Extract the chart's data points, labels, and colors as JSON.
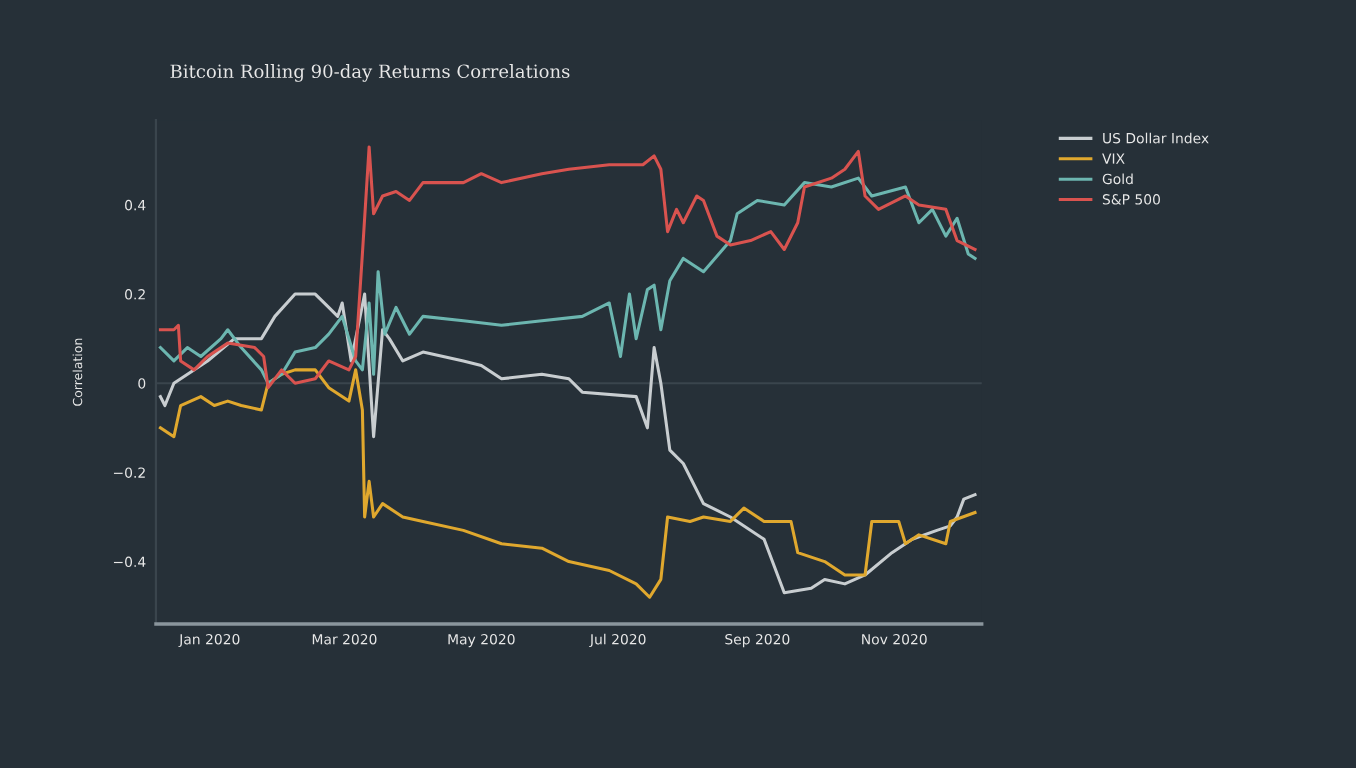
{
  "chart_data": {
    "type": "line",
    "title": "Bitcoin Rolling 90-day Returns Correlations",
    "ylabel": "Correlation",
    "xlim": [
      "2019-12-08",
      "2020-12-10"
    ],
    "ylim": [
      -0.54,
      0.59
    ],
    "xticks": [
      {
        "value": "2020-01-01",
        "label": "Jan 2020"
      },
      {
        "value": "2020-03-01",
        "label": "Mar 2020"
      },
      {
        "value": "2020-05-01",
        "label": "May 2020"
      },
      {
        "value": "2020-07-01",
        "label": "Jul 2020"
      },
      {
        "value": "2020-09-01",
        "label": "Sep 2020"
      },
      {
        "value": "2020-11-01",
        "label": "Nov 2020"
      }
    ],
    "yticks": [
      {
        "value": -0.4,
        "label": "−0.4"
      },
      {
        "value": -0.2,
        "label": "−0.2"
      },
      0,
      0.2,
      0.4
    ],
    "grid": false,
    "legend": "top right",
    "marker": "none",
    "line_style": "solid",
    "ref_lines": [
      {
        "axis": "y",
        "value": 0,
        "label": null,
        "color": "#3a454d"
      }
    ],
    "series": [
      {
        "name": "US Dollar Index",
        "color": "#c8cdd0",
        "x": [
          "2019-12-10",
          "2019-12-12",
          "2019-12-16",
          "2019-12-31",
          "2020-01-12",
          "2020-01-24",
          "2020-01-30",
          "2020-02-08",
          "2020-02-17",
          "2020-02-23",
          "2020-02-27",
          "2020-02-29",
          "2020-03-04",
          "2020-03-10",
          "2020-03-14",
          "2020-03-18",
          "2020-03-21",
          "2020-03-27",
          "2020-04-05",
          "2020-04-23",
          "2020-05-01",
          "2020-05-10",
          "2020-05-28",
          "2020-06-09",
          "2020-06-15",
          "2020-07-09",
          "2020-07-14",
          "2020-07-17",
          "2020-07-20",
          "2020-07-24",
          "2020-07-30",
          "2020-08-08",
          "2020-08-20",
          "2020-09-04",
          "2020-09-13",
          "2020-09-25",
          "2020-10-01",
          "2020-10-10",
          "2020-10-19",
          "2020-10-31",
          "2020-11-09",
          "2020-11-20",
          "2020-11-26",
          "2020-11-29",
          "2020-12-02",
          "2020-12-07"
        ],
        "values": [
          -0.03,
          -0.05,
          0.0,
          0.05,
          0.1,
          0.1,
          0.15,
          0.2,
          0.2,
          0.17,
          0.15,
          0.18,
          0.05,
          0.2,
          -0.12,
          0.12,
          0.1,
          0.05,
          0.07,
          0.05,
          0.04,
          0.01,
          0.02,
          0.01,
          -0.02,
          -0.03,
          -0.1,
          0.08,
          0.0,
          -0.15,
          -0.18,
          -0.27,
          -0.3,
          -0.35,
          -0.47,
          -0.46,
          -0.44,
          -0.45,
          -0.43,
          -0.38,
          -0.35,
          -0.33,
          -0.32,
          -0.3,
          -0.26,
          -0.25
        ]
      },
      {
        "name": "VIX",
        "color": "#e0a82e",
        "x": [
          "2019-12-10",
          "2019-12-16",
          "2019-12-19",
          "2019-12-28",
          "2020-01-03",
          "2020-01-09",
          "2020-01-15",
          "2020-01-24",
          "2020-01-27",
          "2020-02-02",
          "2020-02-08",
          "2020-02-17",
          "2020-02-23",
          "2020-03-03",
          "2020-03-06",
          "2020-03-09",
          "2020-03-10",
          "2020-03-12",
          "2020-03-14",
          "2020-03-18",
          "2020-03-27",
          "2020-04-05",
          "2020-04-23",
          "2020-05-10",
          "2020-05-28",
          "2020-06-09",
          "2020-06-27",
          "2020-07-09",
          "2020-07-15",
          "2020-07-20",
          "2020-07-23",
          "2020-08-02",
          "2020-08-08",
          "2020-08-20",
          "2020-08-26",
          "2020-09-04",
          "2020-09-16",
          "2020-09-19",
          "2020-10-01",
          "2020-10-10",
          "2020-10-19",
          "2020-10-22",
          "2020-11-03",
          "2020-11-06",
          "2020-11-12",
          "2020-11-24",
          "2020-11-26",
          "2020-12-07"
        ],
        "values": [
          -0.1,
          -0.12,
          -0.05,
          -0.03,
          -0.05,
          -0.04,
          -0.05,
          -0.06,
          0.0,
          0.02,
          0.03,
          0.03,
          -0.01,
          -0.04,
          0.03,
          -0.06,
          -0.3,
          -0.22,
          -0.3,
          -0.27,
          -0.3,
          -0.31,
          -0.33,
          -0.36,
          -0.37,
          -0.4,
          -0.42,
          -0.45,
          -0.48,
          -0.44,
          -0.3,
          -0.31,
          -0.3,
          -0.31,
          -0.28,
          -0.31,
          -0.31,
          -0.38,
          -0.4,
          -0.43,
          -0.43,
          -0.31,
          -0.31,
          -0.36,
          -0.34,
          -0.36,
          -0.31,
          -0.29
        ]
      },
      {
        "name": "Gold",
        "color": "#6cb6b0",
        "x": [
          "2019-12-10",
          "2019-12-16",
          "2019-12-22",
          "2019-12-28",
          "2020-01-06",
          "2020-01-09",
          "2020-01-15",
          "2020-01-24",
          "2020-01-27",
          "2020-02-02",
          "2020-02-08",
          "2020-02-17",
          "2020-02-23",
          "2020-02-29",
          "2020-03-06",
          "2020-03-09",
          "2020-03-12",
          "2020-03-14",
          "2020-03-16",
          "2020-03-19",
          "2020-03-24",
          "2020-03-30",
          "2020-04-05",
          "2020-04-23",
          "2020-05-10",
          "2020-05-28",
          "2020-06-15",
          "2020-06-27",
          "2020-07-02",
          "2020-07-06",
          "2020-07-09",
          "2020-07-14",
          "2020-07-17",
          "2020-07-20",
          "2020-07-24",
          "2020-07-30",
          "2020-08-08",
          "2020-08-20",
          "2020-08-23",
          "2020-09-01",
          "2020-09-13",
          "2020-09-22",
          "2020-10-04",
          "2020-10-16",
          "2020-10-22",
          "2020-11-06",
          "2020-11-12",
          "2020-11-18",
          "2020-11-24",
          "2020-11-29",
          "2020-12-04",
          "2020-12-07"
        ],
        "values": [
          0.08,
          0.05,
          0.08,
          0.06,
          0.1,
          0.12,
          0.08,
          0.03,
          0.0,
          0.02,
          0.07,
          0.08,
          0.11,
          0.15,
          0.05,
          0.03,
          0.18,
          0.02,
          0.25,
          0.11,
          0.17,
          0.11,
          0.15,
          0.14,
          0.13,
          0.14,
          0.15,
          0.18,
          0.06,
          0.2,
          0.1,
          0.21,
          0.22,
          0.12,
          0.23,
          0.28,
          0.25,
          0.32,
          0.38,
          0.41,
          0.4,
          0.45,
          0.44,
          0.46,
          0.42,
          0.44,
          0.36,
          0.39,
          0.33,
          0.37,
          0.29,
          0.28
        ]
      },
      {
        "name": "S&P 500",
        "color": "#d9534f",
        "x": [
          "2019-12-10",
          "2019-12-16",
          "2019-12-18",
          "2019-12-19",
          "2019-12-25",
          "2019-12-31",
          "2020-01-09",
          "2020-01-21",
          "2020-01-25",
          "2020-01-27",
          "2020-02-02",
          "2020-02-08",
          "2020-02-17",
          "2020-02-23",
          "2020-03-03",
          "2020-03-06",
          "2020-03-09",
          "2020-03-12",
          "2020-03-14",
          "2020-03-18",
          "2020-03-24",
          "2020-03-30",
          "2020-04-05",
          "2020-04-23",
          "2020-05-01",
          "2020-05-10",
          "2020-05-28",
          "2020-06-09",
          "2020-06-27",
          "2020-07-12",
          "2020-07-17",
          "2020-07-20",
          "2020-07-23",
          "2020-07-27",
          "2020-07-30",
          "2020-08-05",
          "2020-08-08",
          "2020-08-14",
          "2020-08-20",
          "2020-08-29",
          "2020-09-07",
          "2020-09-13",
          "2020-09-19",
          "2020-09-22",
          "2020-10-04",
          "2020-10-10",
          "2020-10-16",
          "2020-10-19",
          "2020-10-25",
          "2020-11-06",
          "2020-11-12",
          "2020-11-24",
          "2020-11-29",
          "2020-12-07"
        ],
        "values": [
          0.12,
          0.12,
          0.13,
          0.05,
          0.03,
          0.06,
          0.09,
          0.08,
          0.06,
          -0.01,
          0.03,
          0.0,
          0.01,
          0.05,
          0.03,
          0.06,
          0.29,
          0.53,
          0.38,
          0.42,
          0.43,
          0.41,
          0.45,
          0.45,
          0.47,
          0.45,
          0.47,
          0.48,
          0.49,
          0.49,
          0.51,
          0.48,
          0.34,
          0.39,
          0.36,
          0.42,
          0.41,
          0.33,
          0.31,
          0.32,
          0.34,
          0.3,
          0.36,
          0.44,
          0.46,
          0.48,
          0.52,
          0.42,
          0.39,
          0.42,
          0.4,
          0.39,
          0.32,
          0.3
        ]
      }
    ]
  }
}
